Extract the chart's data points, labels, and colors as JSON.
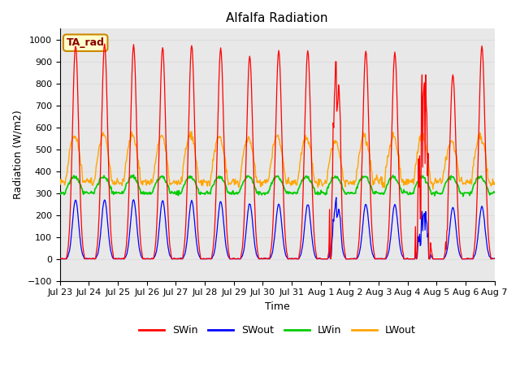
{
  "title": "Alfalfa Radiation",
  "xlabel": "Time",
  "ylabel": "Radiation (W/m2)",
  "ylim": [
    -100,
    1050
  ],
  "annotation_text": "TA_rad",
  "annotation_bg": "#FFFFCC",
  "annotation_border": "#CC8800",
  "grid_color": "#DDDDDD",
  "bg_color": "#E8E8E8",
  "colors": {
    "SWin": "#FF0000",
    "SWout": "#0000FF",
    "LWin": "#00CC00",
    "LWout": "#FFA500"
  },
  "x_tick_labels": [
    "Jul 23",
    "Jul 24",
    "Jul 25",
    "Jul 26",
    "Jul 27",
    "Jul 28",
    "Jul 29",
    "Jul 30",
    "Jul 31",
    "Aug 1",
    "Aug 2",
    "Aug 3",
    "Aug 4",
    "Aug 5",
    "Aug 6",
    "Aug 7"
  ],
  "title_fontsize": 11,
  "label_fontsize": 9,
  "tick_fontsize": 8,
  "n_days": 15,
  "SWin_peaks": [
    975,
    980,
    975,
    965,
    975,
    960,
    925,
    950,
    950,
    870,
    950,
    940,
    960,
    840,
    970
  ],
  "SWout_peaks": [
    270,
    270,
    270,
    265,
    265,
    262,
    252,
    250,
    250,
    248,
    250,
    248,
    245,
    235,
    238
  ]
}
